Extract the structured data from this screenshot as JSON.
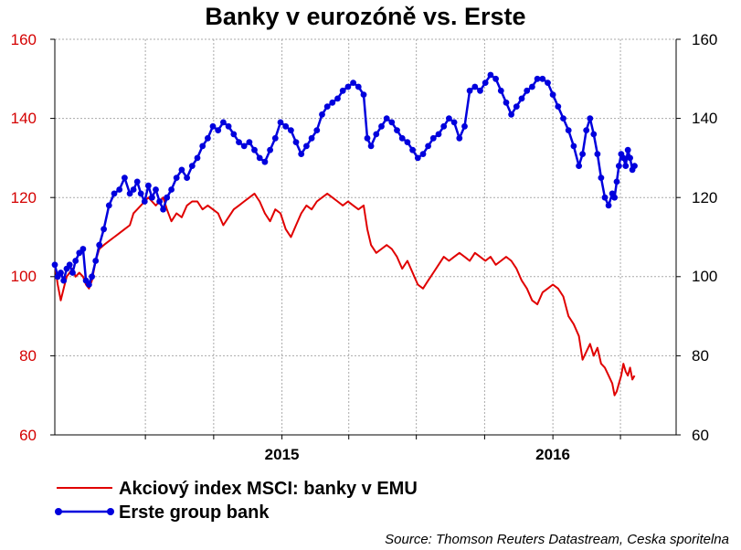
{
  "chart_data": {
    "type": "line",
    "title": "Banky v eurozóně vs. Erste",
    "source": "Source: Thomson Reuters Datastream, Ceska sporitelna",
    "y_left": {
      "ticks": [
        "160",
        "140",
        "120",
        "100",
        "80",
        "60"
      ],
      "ylim": [
        60,
        160
      ],
      "color": "#d40000"
    },
    "y_right": {
      "ticks": [
        "160",
        "140",
        "120",
        "100",
        "80",
        "60"
      ],
      "ylim": [
        60,
        160
      ]
    },
    "x_ticks": [
      "2015",
      "2016"
    ],
    "x_tick_dates": [
      "2015-01-01",
      "2016-01-01"
    ],
    "x_range": [
      "2014-03-01",
      "2016-06-15"
    ],
    "grid": true,
    "legend_placement": "bottom-left",
    "series": [
      {
        "name": "Akciový index MSCI: banky v EMU",
        "color": "#e00000",
        "marker": false,
        "points": [
          [
            "2014-03-01",
            103
          ],
          [
            "2014-03-05",
            98
          ],
          [
            "2014-03-09",
            94
          ],
          [
            "2014-03-13",
            97
          ],
          [
            "2014-03-17",
            100
          ],
          [
            "2014-03-21",
            101
          ],
          [
            "2014-03-25",
            102
          ],
          [
            "2014-03-29",
            100
          ],
          [
            "2014-04-03",
            101
          ],
          [
            "2014-04-08",
            100
          ],
          [
            "2014-04-12",
            98
          ],
          [
            "2014-04-16",
            97
          ],
          [
            "2014-04-20",
            99
          ],
          [
            "2014-04-25",
            104
          ],
          [
            "2014-04-30",
            107
          ],
          [
            "2014-05-06",
            108
          ],
          [
            "2014-05-13",
            109
          ],
          [
            "2014-05-20",
            110
          ],
          [
            "2014-05-27",
            111
          ],
          [
            "2014-06-03",
            112
          ],
          [
            "2014-06-10",
            113
          ],
          [
            "2014-06-15",
            116
          ],
          [
            "2014-06-20",
            117
          ],
          [
            "2014-06-25",
            118
          ],
          [
            "2014-06-30",
            119
          ],
          [
            "2014-07-05",
            120
          ],
          [
            "2014-07-10",
            119
          ],
          [
            "2014-07-15",
            118
          ],
          [
            "2014-07-20",
            119
          ],
          [
            "2014-07-25",
            120
          ],
          [
            "2014-07-30",
            117
          ],
          [
            "2014-08-05",
            114
          ],
          [
            "2014-08-12",
            116
          ],
          [
            "2014-08-19",
            115
          ],
          [
            "2014-08-26",
            118
          ],
          [
            "2014-09-02",
            119
          ],
          [
            "2014-09-09",
            119
          ],
          [
            "2014-09-16",
            117
          ],
          [
            "2014-09-23",
            118
          ],
          [
            "2014-09-30",
            117
          ],
          [
            "2014-10-07",
            116
          ],
          [
            "2014-10-14",
            113
          ],
          [
            "2014-10-21",
            115
          ],
          [
            "2014-10-28",
            117
          ],
          [
            "2014-11-04",
            118
          ],
          [
            "2014-11-11",
            119
          ],
          [
            "2014-11-18",
            120
          ],
          [
            "2014-11-25",
            121
          ],
          [
            "2014-12-02",
            119
          ],
          [
            "2014-12-09",
            116
          ],
          [
            "2014-12-16",
            114
          ],
          [
            "2014-12-23",
            117
          ],
          [
            "2014-12-30",
            116
          ],
          [
            "2015-01-06",
            112
          ],
          [
            "2015-01-13",
            110
          ],
          [
            "2015-01-20",
            113
          ],
          [
            "2015-01-27",
            116
          ],
          [
            "2015-02-03",
            118
          ],
          [
            "2015-02-10",
            117
          ],
          [
            "2015-02-17",
            119
          ],
          [
            "2015-02-24",
            120
          ],
          [
            "2015-03-03",
            121
          ],
          [
            "2015-03-10",
            120
          ],
          [
            "2015-03-17",
            119
          ],
          [
            "2015-03-24",
            118
          ],
          [
            "2015-03-31",
            119
          ],
          [
            "2015-04-07",
            118
          ],
          [
            "2015-04-14",
            117
          ],
          [
            "2015-04-21",
            118
          ],
          [
            "2015-04-26",
            112
          ],
          [
            "2015-05-01",
            108
          ],
          [
            "2015-05-08",
            106
          ],
          [
            "2015-05-15",
            107
          ],
          [
            "2015-05-22",
            108
          ],
          [
            "2015-05-29",
            107
          ],
          [
            "2015-06-05",
            105
          ],
          [
            "2015-06-12",
            102
          ],
          [
            "2015-06-19",
            104
          ],
          [
            "2015-06-26",
            101
          ],
          [
            "2015-07-03",
            98
          ],
          [
            "2015-07-10",
            97
          ],
          [
            "2015-07-17",
            99
          ],
          [
            "2015-07-24",
            101
          ],
          [
            "2015-07-31",
            103
          ],
          [
            "2015-08-07",
            105
          ],
          [
            "2015-08-14",
            104
          ],
          [
            "2015-08-21",
            105
          ],
          [
            "2015-08-28",
            106
          ],
          [
            "2015-09-04",
            105
          ],
          [
            "2015-09-11",
            104
          ],
          [
            "2015-09-18",
            106
          ],
          [
            "2015-09-25",
            105
          ],
          [
            "2015-10-02",
            104
          ],
          [
            "2015-10-09",
            105
          ],
          [
            "2015-10-16",
            103
          ],
          [
            "2015-10-23",
            104
          ],
          [
            "2015-10-30",
            105
          ],
          [
            "2015-11-06",
            104
          ],
          [
            "2015-11-13",
            102
          ],
          [
            "2015-11-20",
            99
          ],
          [
            "2015-11-27",
            97
          ],
          [
            "2015-12-04",
            94
          ],
          [
            "2015-12-11",
            93
          ],
          [
            "2015-12-18",
            96
          ],
          [
            "2015-12-25",
            97
          ],
          [
            "2016-01-01",
            98
          ],
          [
            "2016-01-08",
            97
          ],
          [
            "2016-01-15",
            95
          ],
          [
            "2016-01-22",
            90
          ],
          [
            "2016-01-29",
            88
          ],
          [
            "2016-02-05",
            85
          ],
          [
            "2016-02-10",
            79
          ],
          [
            "2016-02-15",
            81
          ],
          [
            "2016-02-20",
            83
          ],
          [
            "2016-02-25",
            80
          ],
          [
            "2016-03-01",
            82
          ],
          [
            "2016-03-06",
            78
          ],
          [
            "2016-03-11",
            77
          ],
          [
            "2016-03-16",
            75
          ],
          [
            "2016-03-21",
            73
          ],
          [
            "2016-03-24",
            70
          ],
          [
            "2016-03-27",
            71
          ],
          [
            "2016-03-30",
            73
          ],
          [
            "2016-04-02",
            75
          ],
          [
            "2016-04-05",
            78
          ],
          [
            "2016-04-08",
            76
          ],
          [
            "2016-04-11",
            75
          ],
          [
            "2016-04-14",
            77
          ],
          [
            "2016-04-17",
            74
          ],
          [
            "2016-04-20",
            75
          ]
        ]
      },
      {
        "name": "Erste group bank",
        "color": "#0000dd",
        "marker": true,
        "points": [
          [
            "2014-03-01",
            103
          ],
          [
            "2014-03-05",
            100
          ],
          [
            "2014-03-09",
            101
          ],
          [
            "2014-03-13",
            99
          ],
          [
            "2014-03-17",
            102
          ],
          [
            "2014-03-21",
            103
          ],
          [
            "2014-03-25",
            101
          ],
          [
            "2014-03-29",
            104
          ],
          [
            "2014-04-03",
            106
          ],
          [
            "2014-04-08",
            107
          ],
          [
            "2014-04-12",
            99
          ],
          [
            "2014-04-16",
            98
          ],
          [
            "2014-04-20",
            100
          ],
          [
            "2014-04-25",
            104
          ],
          [
            "2014-04-30",
            108
          ],
          [
            "2014-05-06",
            112
          ],
          [
            "2014-05-13",
            118
          ],
          [
            "2014-05-20",
            121
          ],
          [
            "2014-05-27",
            122
          ],
          [
            "2014-06-03",
            125
          ],
          [
            "2014-06-10",
            121
          ],
          [
            "2014-06-15",
            122
          ],
          [
            "2014-06-20",
            124
          ],
          [
            "2014-06-25",
            121
          ],
          [
            "2014-06-30",
            119
          ],
          [
            "2014-07-05",
            123
          ],
          [
            "2014-07-10",
            120
          ],
          [
            "2014-07-15",
            122
          ],
          [
            "2014-07-20",
            119
          ],
          [
            "2014-07-25",
            117
          ],
          [
            "2014-07-30",
            120
          ],
          [
            "2014-08-05",
            122
          ],
          [
            "2014-08-12",
            125
          ],
          [
            "2014-08-19",
            127
          ],
          [
            "2014-08-26",
            125
          ],
          [
            "2014-09-02",
            128
          ],
          [
            "2014-09-09",
            130
          ],
          [
            "2014-09-16",
            133
          ],
          [
            "2014-09-23",
            135
          ],
          [
            "2014-09-30",
            138
          ],
          [
            "2014-10-07",
            137
          ],
          [
            "2014-10-14",
            139
          ],
          [
            "2014-10-21",
            138
          ],
          [
            "2014-10-28",
            136
          ],
          [
            "2014-11-04",
            134
          ],
          [
            "2014-11-11",
            133
          ],
          [
            "2014-11-18",
            134
          ],
          [
            "2014-11-25",
            132
          ],
          [
            "2014-12-02",
            130
          ],
          [
            "2014-12-09",
            129
          ],
          [
            "2014-12-16",
            132
          ],
          [
            "2014-12-23",
            135
          ],
          [
            "2014-12-30",
            139
          ],
          [
            "2015-01-06",
            138
          ],
          [
            "2015-01-13",
            137
          ],
          [
            "2015-01-20",
            134
          ],
          [
            "2015-01-27",
            131
          ],
          [
            "2015-02-03",
            133
          ],
          [
            "2015-02-10",
            135
          ],
          [
            "2015-02-17",
            137
          ],
          [
            "2015-02-24",
            141
          ],
          [
            "2015-03-03",
            143
          ],
          [
            "2015-03-10",
            144
          ],
          [
            "2015-03-17",
            145
          ],
          [
            "2015-03-24",
            147
          ],
          [
            "2015-03-31",
            148
          ],
          [
            "2015-04-07",
            149
          ],
          [
            "2015-04-14",
            148
          ],
          [
            "2015-04-21",
            146
          ],
          [
            "2015-04-26",
            135
          ],
          [
            "2015-05-01",
            133
          ],
          [
            "2015-05-08",
            136
          ],
          [
            "2015-05-15",
            138
          ],
          [
            "2015-05-22",
            140
          ],
          [
            "2015-05-29",
            139
          ],
          [
            "2015-06-05",
            137
          ],
          [
            "2015-06-12",
            135
          ],
          [
            "2015-06-19",
            134
          ],
          [
            "2015-06-26",
            132
          ],
          [
            "2015-07-03",
            130
          ],
          [
            "2015-07-10",
            131
          ],
          [
            "2015-07-17",
            133
          ],
          [
            "2015-07-24",
            135
          ],
          [
            "2015-07-31",
            136
          ],
          [
            "2015-08-07",
            138
          ],
          [
            "2015-08-14",
            140
          ],
          [
            "2015-08-21",
            139
          ],
          [
            "2015-08-28",
            135
          ],
          [
            "2015-09-04",
            138
          ],
          [
            "2015-09-11",
            147
          ],
          [
            "2015-09-18",
            148
          ],
          [
            "2015-09-25",
            147
          ],
          [
            "2015-10-02",
            149
          ],
          [
            "2015-10-09",
            151
          ],
          [
            "2015-10-16",
            150
          ],
          [
            "2015-10-23",
            147
          ],
          [
            "2015-10-30",
            144
          ],
          [
            "2015-11-06",
            141
          ],
          [
            "2015-11-13",
            143
          ],
          [
            "2015-11-20",
            145
          ],
          [
            "2015-11-27",
            147
          ],
          [
            "2015-12-04",
            148
          ],
          [
            "2015-12-11",
            150
          ],
          [
            "2015-12-18",
            150
          ],
          [
            "2015-12-25",
            149
          ],
          [
            "2016-01-01",
            146
          ],
          [
            "2016-01-08",
            143
          ],
          [
            "2016-01-15",
            140
          ],
          [
            "2016-01-22",
            137
          ],
          [
            "2016-01-29",
            133
          ],
          [
            "2016-02-05",
            128
          ],
          [
            "2016-02-10",
            131
          ],
          [
            "2016-02-15",
            137
          ],
          [
            "2016-02-20",
            140
          ],
          [
            "2016-02-25",
            136
          ],
          [
            "2016-03-01",
            131
          ],
          [
            "2016-03-06",
            125
          ],
          [
            "2016-03-11",
            120
          ],
          [
            "2016-03-16",
            118
          ],
          [
            "2016-03-21",
            121
          ],
          [
            "2016-03-24",
            120
          ],
          [
            "2016-03-27",
            124
          ],
          [
            "2016-03-30",
            128
          ],
          [
            "2016-04-02",
            131
          ],
          [
            "2016-04-05",
            130
          ],
          [
            "2016-04-08",
            128
          ],
          [
            "2016-04-11",
            132
          ],
          [
            "2016-04-14",
            130
          ],
          [
            "2016-04-17",
            127
          ],
          [
            "2016-04-20",
            128
          ]
        ]
      }
    ]
  }
}
